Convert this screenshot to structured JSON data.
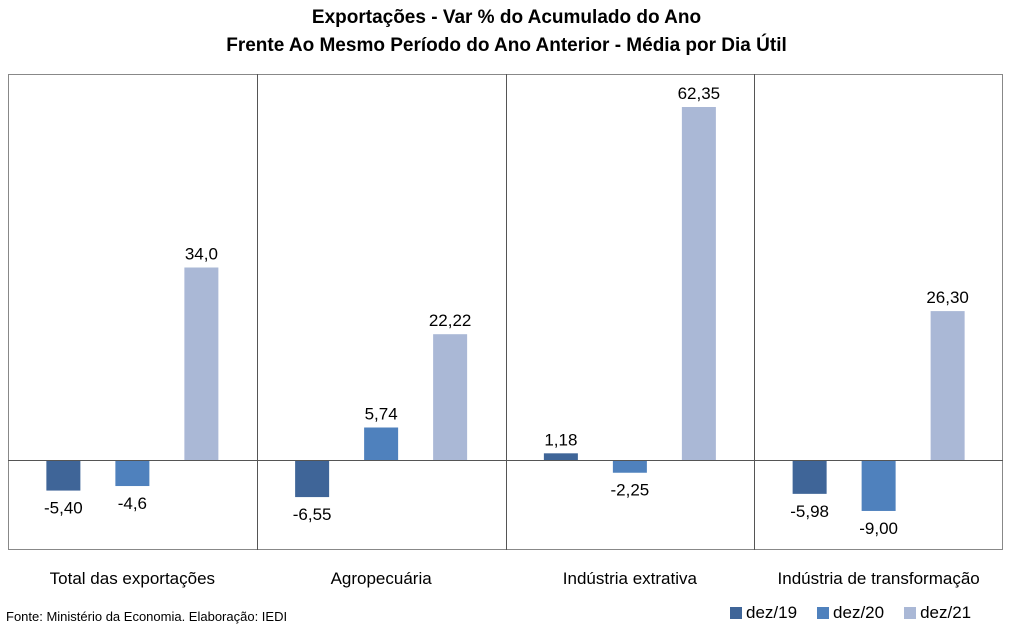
{
  "chart_data": {
    "type": "bar",
    "title_line1": "Exportações - Var % do Acumulado do Ano",
    "title_line2": "Frente Ao Mesmo Período do Ano Anterior - Média por Dia Útil",
    "categories": [
      "Total das exportações",
      "Agropecuária",
      "Indústria extrativa",
      "Indústria de transformação"
    ],
    "series": [
      {
        "name": "dez/19",
        "color": "#3f6598",
        "values": [
          -5.4,
          -6.55,
          1.18,
          -5.98
        ],
        "labels": [
          "-5,40",
          "-6,55",
          "1,18",
          "-5,98"
        ]
      },
      {
        "name": "dez/20",
        "color": "#4f81bd",
        "values": [
          -4.6,
          5.74,
          -2.25,
          -9.0
        ],
        "labels": [
          "-4,6",
          "5,74",
          "-2,25",
          "-9,00"
        ]
      },
      {
        "name": "dez/21",
        "color": "#aab8d6",
        "values": [
          34.0,
          22.22,
          62.35,
          26.3
        ],
        "labels": [
          "34,0",
          "22,22",
          "62,35",
          "26,30"
        ]
      }
    ],
    "ylim": [
      -15.85,
      68.15
    ],
    "grid": false,
    "legend_position": "bottom-right"
  },
  "source_text": "Fonte: Ministério da Economia. Elaboração: IEDI"
}
